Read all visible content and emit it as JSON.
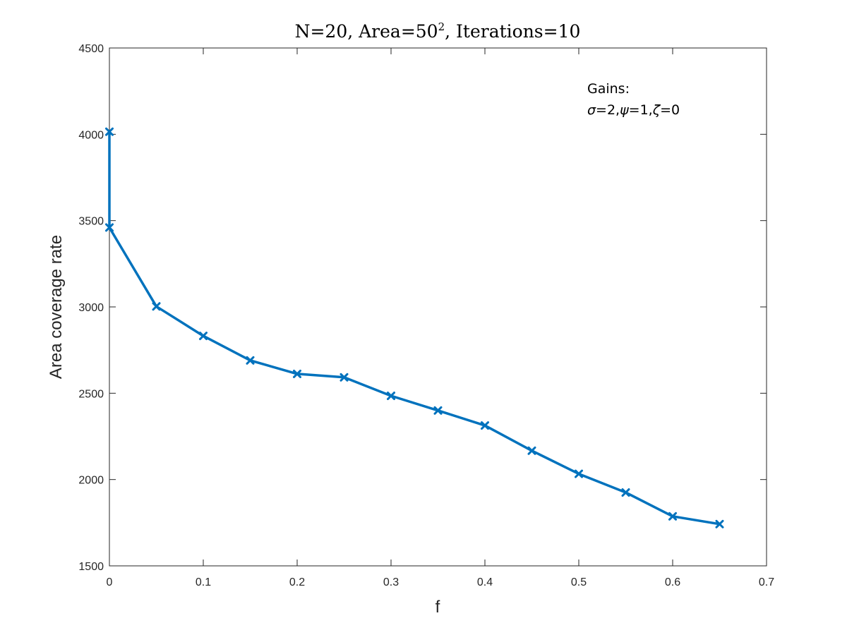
{
  "chart_data": {
    "type": "line",
    "title_parts": {
      "main": "N=20, Area=50",
      "superscript": "2",
      "tail": ", Iterations=10"
    },
    "xlabel": "f",
    "ylabel": "Area coverage rate",
    "xlim": [
      0,
      0.7
    ],
    "ylim": [
      1500,
      4500
    ],
    "xticks": [
      0,
      0.1,
      0.2,
      0.3,
      0.4,
      0.5,
      0.6,
      0.7
    ],
    "xtick_labels": [
      "0",
      "0.1",
      "0.2",
      "0.3",
      "0.4",
      "0.5",
      "0.6",
      "0.7"
    ],
    "yticks": [
      1500,
      2000,
      2500,
      3000,
      3500,
      4000,
      4500
    ],
    "ytick_labels": [
      "1500",
      "2000",
      "2500",
      "3000",
      "3500",
      "4000",
      "4500"
    ],
    "grid": false,
    "series": [
      {
        "color": "#0072BD",
        "marker": "x",
        "x": [
          0,
          0,
          0.05,
          0.1,
          0.15,
          0.2,
          0.25,
          0.3,
          0.35,
          0.4,
          0.45,
          0.5,
          0.55,
          0.6,
          0.65
        ],
        "y": [
          4015,
          3460,
          3003,
          2832,
          2690,
          2612,
          2592,
          2485,
          2400,
          2313,
          2167,
          2033,
          1925,
          1787,
          1742
        ]
      }
    ],
    "annotation": {
      "line1": "Gains:",
      "line2_parts": [
        "σ",
        "=2,",
        "ψ",
        "=1,",
        "ζ",
        "=0"
      ]
    }
  }
}
